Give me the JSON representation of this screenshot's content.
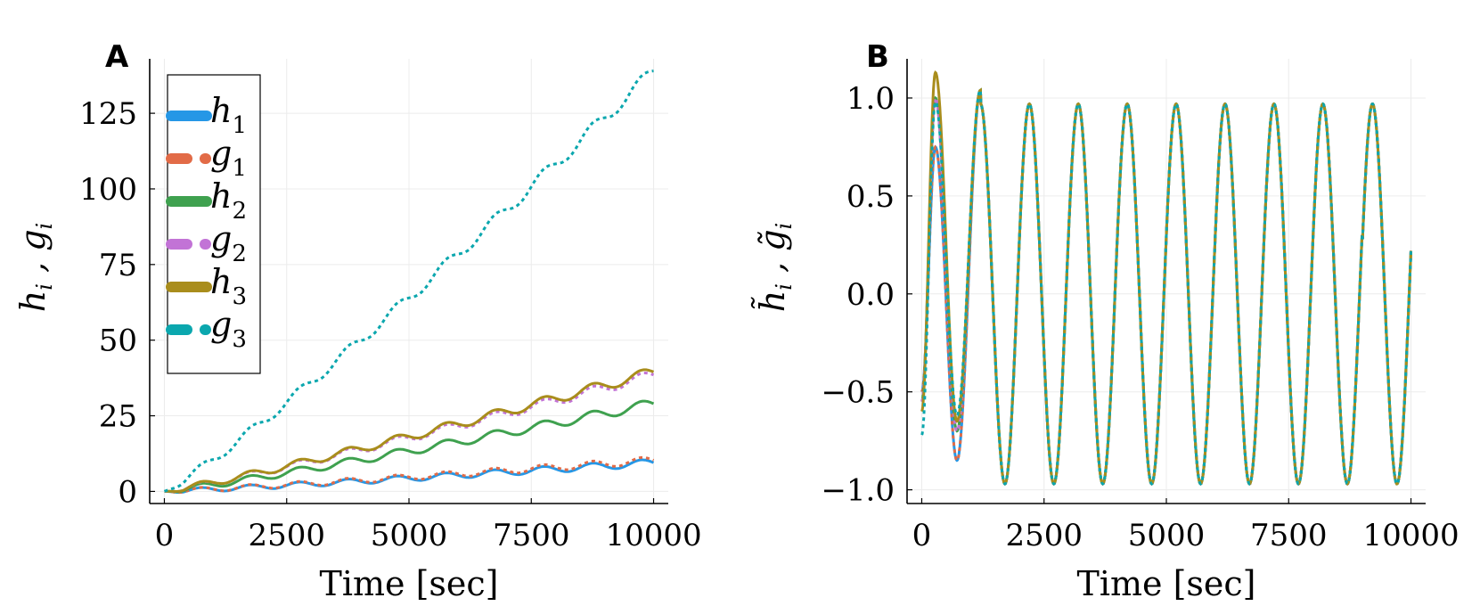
{
  "chart_data": [
    {
      "panel": "A",
      "type": "line",
      "xlabel": "Time [sec]",
      "ylabel": {
        "main1": "h",
        "sub1": "i",
        "sep": " , ",
        "main2": "g",
        "sub2": "i"
      },
      "xlim": [
        -300,
        10300
      ],
      "ylim": [
        -4,
        143
      ],
      "xticks": [
        0,
        2500,
        5000,
        7500,
        10000
      ],
      "xtick_labels": [
        "0",
        "2500",
        "5000",
        "7500",
        "10000"
      ],
      "yticks": [
        0,
        25,
        50,
        75,
        100,
        125
      ],
      "ytick_labels": [
        "0",
        "25",
        "50",
        "75",
        "100",
        "125"
      ],
      "grid": true,
      "legend_position": "top-left",
      "series": [
        {
          "name": "h1",
          "label_main": "h",
          "label_sub": "1",
          "color": "#2597e6",
          "dash": "solid",
          "trend_end": 9.5,
          "amplitude": 1.2
        },
        {
          "name": "g1",
          "label_main": "g",
          "label_sub": "1",
          "color": "#e26b47",
          "dash": "dotted",
          "trend_end": 10.3,
          "amplitude": 1.2
        },
        {
          "name": "h2",
          "label_main": "h",
          "label_sub": "2",
          "color": "#3fa14f",
          "dash": "solid",
          "trend_end": 29,
          "amplitude": 1.6
        },
        {
          "name": "g2",
          "label_main": "g",
          "label_sub": "2",
          "color": "#c273d6",
          "dash": "dotted",
          "trend_end": 38.5,
          "amplitude": 1.6
        },
        {
          "name": "h3",
          "label_main": "h",
          "label_sub": "3",
          "color": "#a98d1c",
          "dash": "solid",
          "trend_end": 39.5,
          "amplitude": 1.7
        },
        {
          "name": "g3",
          "label_main": "g",
          "label_sub": "3",
          "color": "#0ba7ae",
          "dash": "dotted",
          "trend_end": 139,
          "amplitude": 2.2
        }
      ]
    },
    {
      "panel": "B",
      "type": "line",
      "xlabel": "Time [sec]",
      "ylabel": {
        "main1": "h̃",
        "sub1": "i",
        "sep": " , ",
        "main2": "g̃",
        "sub2": "i"
      },
      "xlim": [
        -300,
        10300
      ],
      "ylim": [
        -1.07,
        1.2
      ],
      "xticks": [
        0,
        2500,
        5000,
        7500,
        10000
      ],
      "xtick_labels": [
        "0",
        "2500",
        "5000",
        "7500",
        "10000"
      ],
      "yticks": [
        -1.0,
        -0.5,
        0.0,
        0.5,
        1.0
      ],
      "ytick_labels": [
        "−1.0",
        "−0.5",
        "0.0",
        "0.5",
        "1.0"
      ],
      "grid": true,
      "legend": "none",
      "oscillation": {
        "period_sec": 1000,
        "amplitude": 0.97,
        "end_value": 0.22
      },
      "series": [
        {
          "name": "h1",
          "color": "#2597e6",
          "dash": "solid",
          "start": -0.5,
          "first_peak": 0.75,
          "first_trough": -0.85
        },
        {
          "name": "g1",
          "color": "#e26b47",
          "dash": "dotted",
          "start": -0.5,
          "first_peak": 0.75,
          "first_trough": -0.85
        },
        {
          "name": "h2",
          "color": "#3fa14f",
          "dash": "solid",
          "start": -0.55,
          "first_peak": 1.0,
          "first_trough": -0.7
        },
        {
          "name": "g2",
          "color": "#c273d6",
          "dash": "dotted",
          "start": -0.55,
          "first_peak": 1.0,
          "first_trough": -0.7
        },
        {
          "name": "h3",
          "color": "#a98d1c",
          "dash": "solid",
          "start": -0.6,
          "first_peak": 1.13,
          "first_trough": -0.65
        },
        {
          "name": "g3",
          "color": "#0ba7ae",
          "dash": "dotted",
          "start": -0.72,
          "first_peak": 0.98,
          "first_trough": -0.62
        }
      ]
    }
  ]
}
